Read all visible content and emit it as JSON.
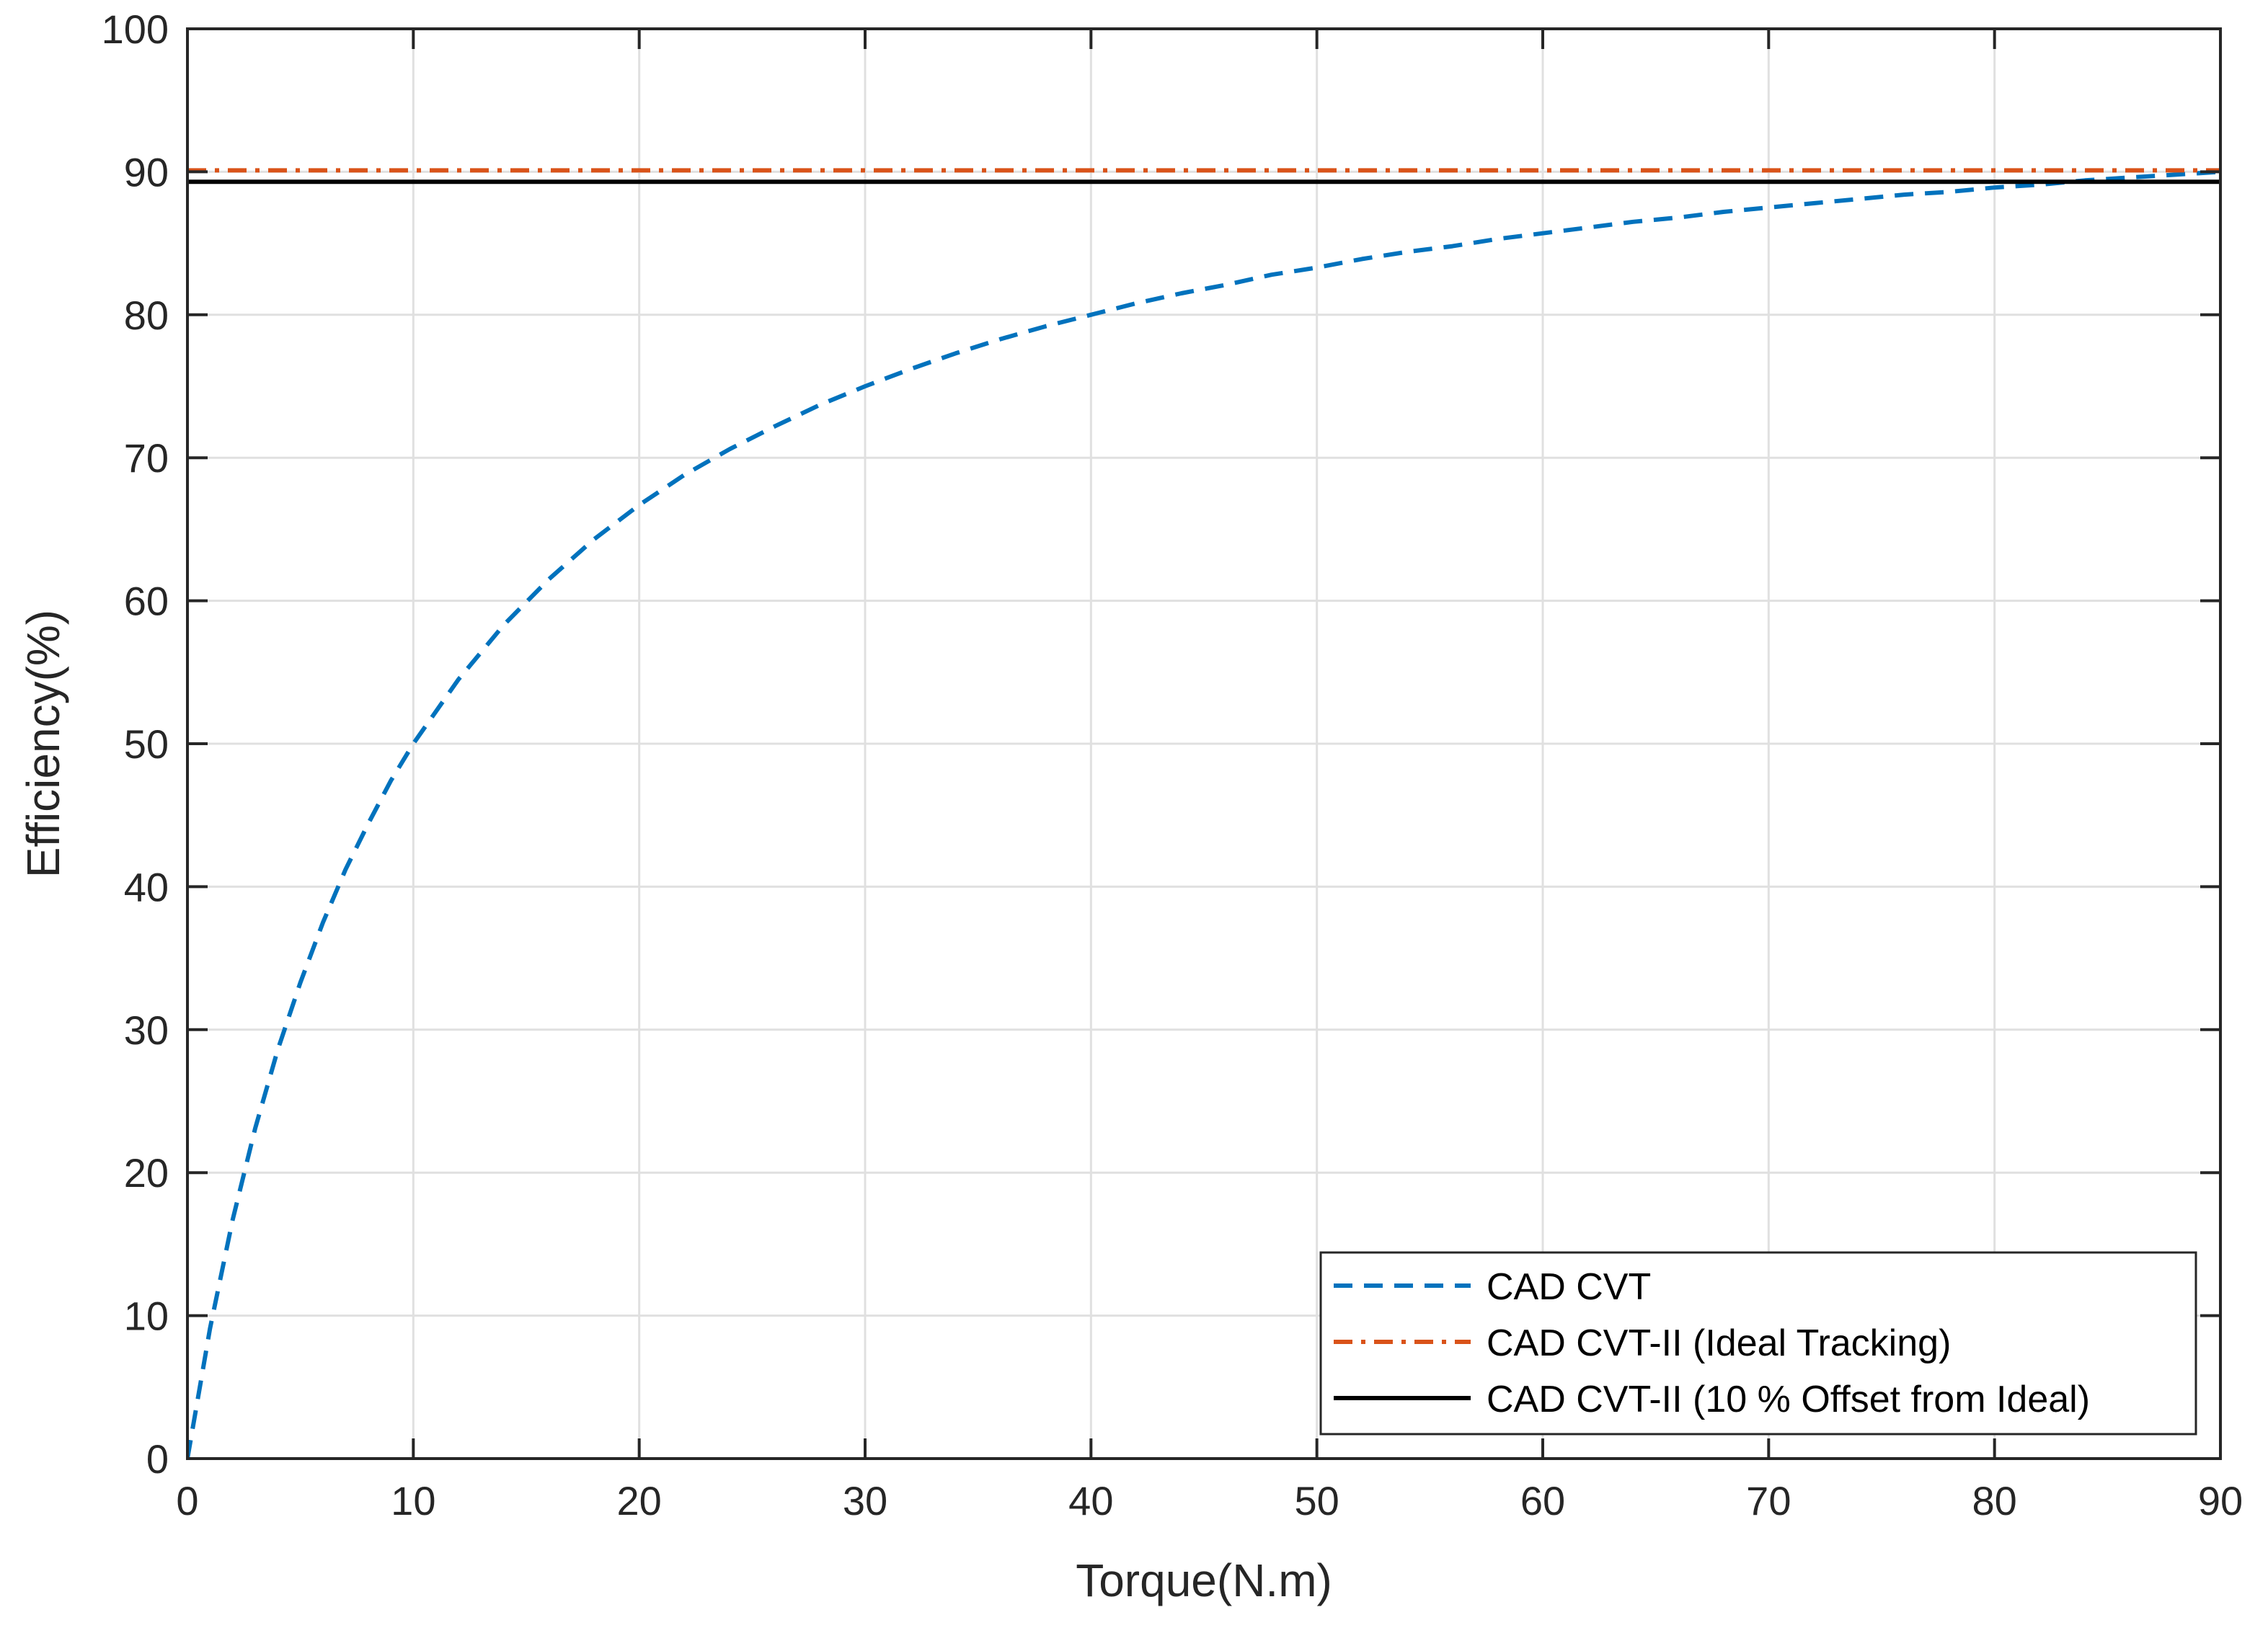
{
  "chart_data": {
    "type": "line",
    "title": "",
    "xlabel": "Torque(N.m)",
    "ylabel": "Efficiency(%)",
    "xlim": [
      0,
      90
    ],
    "ylim": [
      0,
      100
    ],
    "xticks": [
      "0",
      "10",
      "20",
      "30",
      "40",
      "50",
      "60",
      "70",
      "80",
      "90"
    ],
    "yticks": [
      "0",
      "10",
      "20",
      "30",
      "40",
      "50",
      "60",
      "70",
      "80",
      "90",
      "100"
    ],
    "grid": true,
    "legend_position": "bottom-right",
    "series": [
      {
        "name": "CAD CVT",
        "color": "#0072BD",
        "style": "dashed",
        "x": [
          0,
          1,
          2,
          3,
          4,
          5,
          6,
          7,
          8,
          9,
          10,
          12,
          14,
          16,
          18,
          20,
          22,
          24,
          26,
          28,
          30,
          32,
          34,
          36,
          38,
          40,
          42,
          44,
          46,
          48,
          50,
          52,
          54,
          56,
          58,
          60,
          62,
          64,
          66,
          68,
          70,
          72,
          74,
          76,
          78,
          80,
          82,
          84,
          86,
          88,
          90
        ],
        "y": [
          0,
          9.1,
          16.7,
          23.1,
          28.6,
          33.3,
          37.5,
          41.2,
          44.4,
          47.4,
          50.0,
          54.5,
          58.3,
          61.5,
          64.3,
          66.7,
          68.8,
          70.6,
          72.2,
          73.7,
          75.0,
          76.2,
          77.3,
          78.3,
          79.2,
          80.0,
          80.8,
          81.5,
          82.1,
          82.8,
          83.3,
          83.9,
          84.4,
          84.8,
          85.3,
          85.7,
          86.1,
          86.5,
          86.8,
          87.2,
          87.5,
          87.8,
          88.1,
          88.4,
          88.6,
          88.9,
          89.1,
          89.4,
          89.6,
          89.8,
          90.0
        ]
      },
      {
        "name": "CAD CVT-II (Ideal Tracking)",
        "color": "#D95319",
        "style": "dashdot",
        "x": [
          0,
          90
        ],
        "y": [
          90.1,
          90.1
        ]
      },
      {
        "name": "CAD CVT-II (10 % Offset from Ideal)",
        "color": "#000000",
        "style": "solid",
        "x": [
          0,
          90
        ],
        "y": [
          89.3,
          89.3
        ]
      }
    ]
  }
}
